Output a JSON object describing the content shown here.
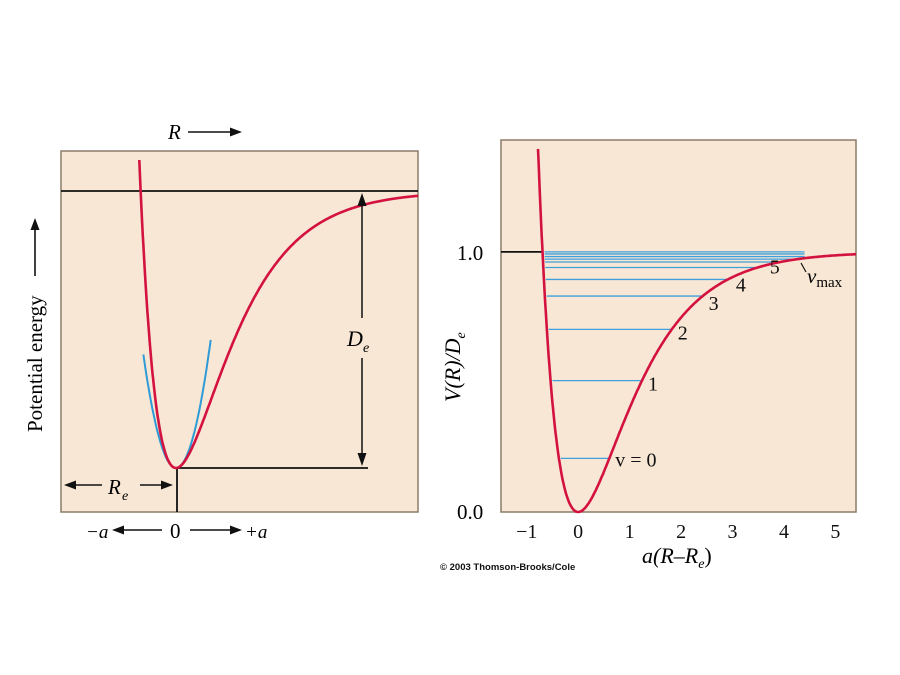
{
  "colors": {
    "panel_bg": "#f8e7d4",
    "frame": "#8c7b68",
    "morse_curve": "#d4123f",
    "harmonic_curve": "#2e9bd6",
    "levels": "#3ea0dc",
    "ink": "#111111"
  },
  "copyright": "© 2003 Thomson-Brooks/Cole",
  "chart_data": [
    {
      "type": "line",
      "panel": "left",
      "top_label": "R",
      "ylabel": "Potential energy",
      "x_axis_labels": {
        "left": "−a",
        "center": "0",
        "right": "+a"
      },
      "annotations": {
        "well_depth": "D",
        "well_depth_sub": "e",
        "equilibrium": "R",
        "equilibrium_sub": "e"
      },
      "series": [
        {
          "kind": "morse",
          "formula": "V = De(1 − e^(−a(R−Re)))^2"
        },
        {
          "kind": "harmonic",
          "formula": "V = De·a²(R−Re)²"
        }
      ],
      "grid": false
    },
    {
      "type": "line",
      "panel": "right",
      "ylabel": "V(R)/D",
      "ylabel_sub": "e",
      "xlabel": "a(R–R",
      "xlabel_sub": "e",
      "xlabel_close": ")",
      "xlim": [
        -1.5,
        5.4
      ],
      "ylim": [
        0.0,
        1.43
      ],
      "x_ticks": [
        "−1",
        "0",
        "1",
        "2",
        "3",
        "4",
        "5"
      ],
      "x_tick_values": [
        -1,
        0,
        1,
        2,
        3,
        4,
        5
      ],
      "y_ticks": [
        "0.0",
        "1.0"
      ],
      "y_tick_values": [
        0.0,
        1.0
      ],
      "curve": "V/De = (1 − e^(−x))^2",
      "vibrational_levels": [
        0.206,
        0.505,
        0.702,
        0.83,
        0.894,
        0.94,
        0.961,
        0.972,
        0.982,
        0.992,
        1.0
      ],
      "level_labels": [
        {
          "level": 0,
          "text": "v = 0"
        },
        {
          "level": 1,
          "text": "1"
        },
        {
          "level": 2,
          "text": "2"
        },
        {
          "level": 3,
          "text": "3"
        },
        {
          "level": 4,
          "text": "4"
        },
        {
          "level": 5,
          "text": "5"
        }
      ],
      "vmax_label": "v",
      "vmax_sub": "max",
      "grid": false
    }
  ]
}
